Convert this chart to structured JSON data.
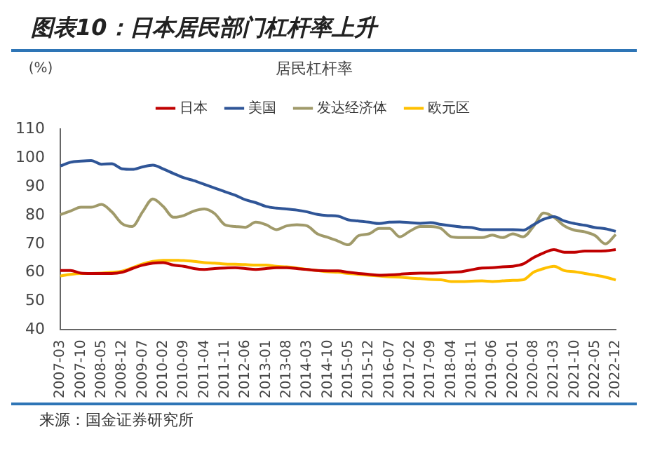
{
  "chart_data": {
    "type": "line",
    "title": "图表10：日本居民部门杠杆率上升",
    "subtitle": "居民杠杆率",
    "ylabel": "(%)",
    "annotations": [
      "来源：国金证券研究所"
    ],
    "categories": [
      "2007-03",
      null,
      "2007-10",
      null,
      "2008-05",
      null,
      "2008-12",
      null,
      "2009-07",
      null,
      "2010-02",
      null,
      "2010-09",
      null,
      "2011-04",
      null,
      "2011-11",
      null,
      "2012-06",
      null,
      "2013-01",
      null,
      "2013-08",
      null,
      "2014-03",
      null,
      "2014-10",
      null,
      "2015-05",
      null,
      "2015-12",
      null,
      "2016-07",
      null,
      "2017-02",
      null,
      "2017-09",
      null,
      "2018-04",
      null,
      "2018-11",
      null,
      "2019-06",
      null,
      "2020-01",
      null,
      "2020-08",
      null,
      "2021-03",
      null,
      "2021-10",
      null,
      "2022-05",
      null,
      "2022-12"
    ],
    "ylim": [
      40,
      110
    ],
    "yticks": [
      40,
      50,
      60,
      70,
      80,
      90,
      100,
      110
    ],
    "grid": false,
    "legend": "top",
    "marker": "none",
    "series": [
      {
        "name": "日本",
        "color": "#c00000",
        "values": [
          60.7,
          60.7,
          59.8,
          59.7,
          59.7,
          59.7,
          60.1,
          61.4,
          62.6,
          63.3,
          63.5,
          62.6,
          62.2,
          61.4,
          61.1,
          61.4,
          61.6,
          61.7,
          61.4,
          61.1,
          61.4,
          61.7,
          61.7,
          61.4,
          61.1,
          60.7,
          60.6,
          60.6,
          60.1,
          59.7,
          59.4,
          59.1,
          59.2,
          59.4,
          59.7,
          59.8,
          59.8,
          59.9,
          60.1,
          60.3,
          61.0,
          61.6,
          61.7,
          62.0,
          62.2,
          63.0,
          65.2,
          66.9,
          68.0,
          67.1,
          67.1,
          67.5,
          67.5,
          67.6,
          68.0
        ]
      },
      {
        "name": "美国",
        "color": "#2f5597",
        "values": [
          97.2,
          98.5,
          98.9,
          99.1,
          97.8,
          98.0,
          96.2,
          96.0,
          96.9,
          97.5,
          96.2,
          94.6,
          93.1,
          92.1,
          90.8,
          89.5,
          88.2,
          87.0,
          85.4,
          84.4,
          83.1,
          82.5,
          82.2,
          81.8,
          81.2,
          80.3,
          79.9,
          79.7,
          78.4,
          78.0,
          77.6,
          77.1,
          77.6,
          77.7,
          77.4,
          77.2,
          77.4,
          76.8,
          76.3,
          75.9,
          75.7,
          75.0,
          75.0,
          75.0,
          75.0,
          74.8,
          76.7,
          78.6,
          79.5,
          78.0,
          77.1,
          76.5,
          75.7,
          75.3,
          74.4
        ]
      },
      {
        "name": "发达经济体",
        "color": "#a09a6a",
        "values": [
          80.2,
          81.5,
          82.8,
          82.8,
          83.8,
          81.2,
          77.1,
          76.1,
          81.2,
          85.7,
          83.1,
          79.3,
          79.9,
          81.5,
          82.2,
          80.6,
          76.7,
          76.1,
          75.8,
          77.6,
          76.7,
          75.0,
          76.3,
          76.7,
          76.3,
          73.5,
          72.3,
          71.0,
          69.7,
          72.9,
          73.5,
          75.4,
          75.4,
          72.5,
          74.5,
          76.1,
          76.1,
          75.4,
          72.5,
          72.2,
          72.2,
          72.2,
          73.1,
          72.2,
          73.5,
          72.5,
          76.1,
          80.8,
          79.3,
          76.3,
          74.8,
          74.2,
          72.9,
          70.0,
          73.3
        ]
      },
      {
        "name": "欧元区",
        "color": "#ffc000",
        "values": [
          58.8,
          59.4,
          59.7,
          59.7,
          59.8,
          60.1,
          60.5,
          61.7,
          63.0,
          63.9,
          64.3,
          64.3,
          64.2,
          63.9,
          63.5,
          63.3,
          63.0,
          62.9,
          62.8,
          62.6,
          62.6,
          62.2,
          62.0,
          61.6,
          61.1,
          60.7,
          60.3,
          60.1,
          59.7,
          59.4,
          59.1,
          58.8,
          58.5,
          58.4,
          58.1,
          57.9,
          57.6,
          57.5,
          56.9,
          56.9,
          57.0,
          57.1,
          56.9,
          57.1,
          57.3,
          57.5,
          60.1,
          61.4,
          62.2,
          60.7,
          60.3,
          59.7,
          59.1,
          58.4,
          57.4
        ]
      }
    ]
  }
}
